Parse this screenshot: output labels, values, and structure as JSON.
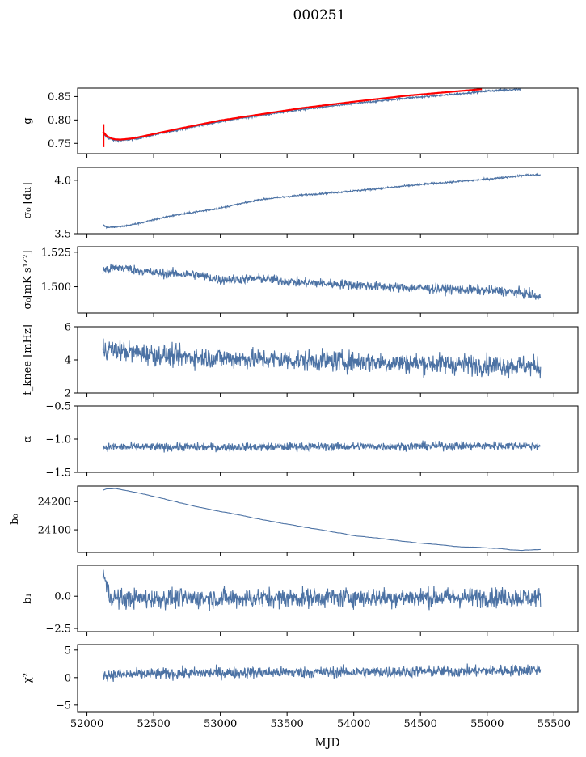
{
  "figure": {
    "title": "000251",
    "xlabel": "MJD",
    "x_ticks": [
      "52000",
      "52500",
      "53000",
      "53500",
      "54000",
      "54500",
      "55000",
      "55500"
    ]
  },
  "colors": {
    "series": "#4c72a4",
    "fit": "#ff0000",
    "axis": "#000000"
  },
  "chart_data": [
    {
      "type": "line",
      "ylabel": "g",
      "xlim": [
        51930,
        55680
      ],
      "ylim": [
        0.728,
        0.868
      ],
      "yticks": [
        0.75,
        0.8,
        0.85
      ],
      "ytick_labels": [
        "0.75",
        "0.80",
        "0.85"
      ],
      "series": [
        {
          "name": "",
          "style": "noisy",
          "noise": 0.0015,
          "x": [
            52120,
            52150,
            52200,
            52250,
            52350,
            52500,
            52700,
            53000,
            53300,
            53600,
            54000,
            54400,
            54800,
            55000,
            55250
          ],
          "y": [
            0.772,
            0.762,
            0.757,
            0.756,
            0.759,
            0.768,
            0.78,
            0.797,
            0.81,
            0.822,
            0.835,
            0.847,
            0.856,
            0.862,
            0.866
          ]
        },
        {
          "name": "",
          "style": "fit",
          "color": "#ff0000",
          "x": [
            52120,
            52150,
            52200,
            52250,
            52350,
            52500,
            52700,
            53000,
            53300,
            53600,
            54000,
            54400,
            54800,
            54960
          ],
          "y": [
            0.775,
            0.765,
            0.759,
            0.758,
            0.761,
            0.77,
            0.782,
            0.799,
            0.812,
            0.825,
            0.839,
            0.852,
            0.862,
            0.866
          ]
        }
      ],
      "errorbar": {
        "x": 52125,
        "y_low": 0.742,
        "y_high": 0.791
      }
    },
    {
      "type": "line",
      "ylabel": "σ₀ [du]",
      "xlim": [
        51930,
        55680
      ],
      "ylim": [
        3.5,
        4.12
      ],
      "yticks": [
        3.5,
        4.0
      ],
      "ytick_labels": [
        "3.5",
        "4.0"
      ],
      "series": [
        {
          "name": "",
          "style": "noisy",
          "noise": 0.006,
          "x": [
            52120,
            52150,
            52250,
            52400,
            52600,
            53000,
            53300,
            53600,
            54000,
            54500,
            55000,
            55300,
            55400
          ],
          "y": [
            3.585,
            3.56,
            3.565,
            3.6,
            3.66,
            3.74,
            3.82,
            3.86,
            3.9,
            3.96,
            4.01,
            4.05,
            4.05
          ]
        }
      ]
    },
    {
      "type": "line",
      "ylabel": "σ₀[mK s¹ᐟ²]",
      "xlim": [
        51930,
        55680
      ],
      "ylim": [
        1.481,
        1.529
      ],
      "yticks": [
        1.5,
        1.525
      ],
      "ytick_labels": [
        "1.500",
        "1.525"
      ],
      "series": [
        {
          "name": "",
          "style": "noisy",
          "noise": 0.0025,
          "x": [
            52120,
            52250,
            52500,
            52800,
            53000,
            53300,
            53600,
            53900,
            54200,
            54500,
            54800,
            55100,
            55300,
            55400
          ],
          "y": [
            1.512,
            1.514,
            1.51,
            1.509,
            1.505,
            1.506,
            1.503,
            1.502,
            1.5,
            1.499,
            1.498,
            1.497,
            1.495,
            1.492
          ]
        }
      ]
    },
    {
      "type": "line",
      "ylabel": "f_knee [mHz]",
      "xlim": [
        51930,
        55680
      ],
      "ylim": [
        2,
        6
      ],
      "yticks": [
        2,
        4,
        6
      ],
      "ytick_labels": [
        "2",
        "4",
        "6"
      ],
      "series": [
        {
          "name": "",
          "style": "noisy",
          "noise": 0.45,
          "x": [
            52120,
            52400,
            52700,
            53000,
            53500,
            54000,
            54500,
            55000,
            55400
          ],
          "y": [
            4.7,
            4.4,
            4.2,
            4.1,
            4.0,
            3.9,
            3.8,
            3.7,
            3.6
          ]
        }
      ]
    },
    {
      "type": "line",
      "ylabel": "α",
      "xlim": [
        51930,
        55680
      ],
      "ylim": [
        -1.5,
        -0.5
      ],
      "yticks": [
        -1.5,
        -1.0,
        -0.5
      ],
      "ytick_labels": [
        "−1.5",
        "−1.0",
        "−0.5"
      ],
      "series": [
        {
          "name": "",
          "style": "noisy",
          "noise": 0.045,
          "x": [
            52120,
            53000,
            54000,
            55000,
            55400
          ],
          "y": [
            -1.12,
            -1.12,
            -1.11,
            -1.1,
            -1.1
          ]
        }
      ]
    },
    {
      "type": "line",
      "ylabel": "b₀",
      "xlim": [
        51930,
        55680
      ],
      "ylim": [
        24020,
        24255
      ],
      "yticks": [
        24100,
        24200
      ],
      "ytick_labels": [
        "24100",
        "24200"
      ],
      "series": [
        {
          "name": "",
          "style": "smooth",
          "noise": 0.6,
          "x": [
            52120,
            52150,
            52220,
            52400,
            52700,
            53000,
            53500,
            54000,
            54500,
            54800,
            55000,
            55250,
            55400
          ],
          "y": [
            24240,
            24245,
            24245,
            24230,
            24195,
            24165,
            24120,
            24080,
            24052,
            24040,
            24036,
            24027,
            24030
          ]
        }
      ]
    },
    {
      "type": "line",
      "ylabel": "b₁",
      "xlim": [
        51930,
        55680
      ],
      "ylim": [
        -2.75,
        2.4
      ],
      "yticks": [
        -2.5,
        0.0
      ],
      "ytick_labels": [
        "−2.5",
        "0.0"
      ],
      "series": [
        {
          "name": "",
          "style": "noisy",
          "noise": 0.55,
          "x": [
            52120,
            52135,
            52170,
            52250,
            53000,
            54000,
            55000,
            55400
          ],
          "y": [
            2.1,
            1.2,
            0.0,
            -0.2,
            -0.15,
            -0.1,
            -0.1,
            -0.1
          ]
        }
      ]
    },
    {
      "type": "line",
      "ylabel": "χ²",
      "xlim": [
        51930,
        55680
      ],
      "ylim": [
        -6.2,
        6
      ],
      "yticks": [
        -5,
        0,
        5
      ],
      "ytick_labels": [
        "−5",
        "0",
        "5"
      ],
      "series": [
        {
          "name": "",
          "style": "noisy",
          "noise": 0.75,
          "x": [
            52120,
            53000,
            54000,
            55000,
            55400
          ],
          "y": [
            0.5,
            0.9,
            1.0,
            1.2,
            1.5
          ]
        }
      ]
    }
  ]
}
